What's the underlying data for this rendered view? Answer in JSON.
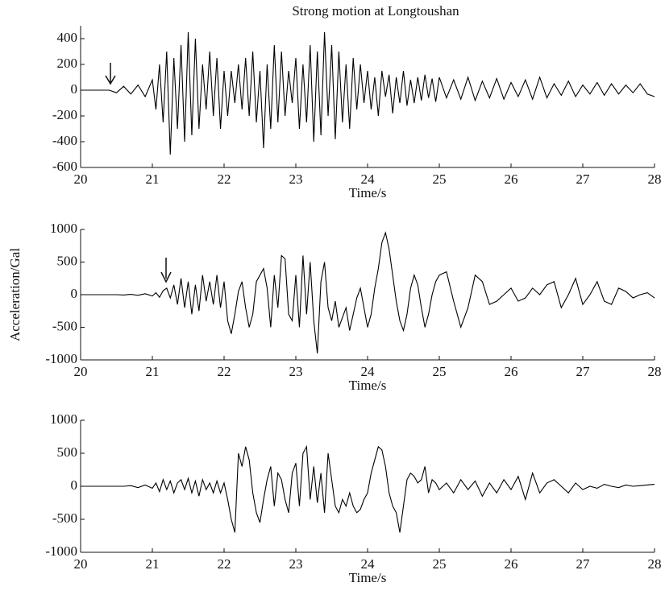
{
  "chart_data": [
    {
      "type": "line",
      "title": "Strong motion at Longtoushan",
      "xlabel": "Time/s",
      "x": [
        20,
        20.1,
        20.2,
        20.3,
        20.4,
        20.5,
        20.6,
        20.7,
        20.8,
        20.9,
        21,
        21.05,
        21.1,
        21.15,
        21.2,
        21.25,
        21.3,
        21.35,
        21.4,
        21.45,
        21.5,
        21.55,
        21.6,
        21.65,
        21.7,
        21.75,
        21.8,
        21.85,
        21.9,
        21.95,
        22,
        22.05,
        22.1,
        22.15,
        22.2,
        22.25,
        22.3,
        22.35,
        22.4,
        22.45,
        22.5,
        22.55,
        22.6,
        22.65,
        22.7,
        22.75,
        22.8,
        22.85,
        22.9,
        22.95,
        23,
        23.05,
        23.1,
        23.15,
        23.2,
        23.25,
        23.3,
        23.35,
        23.4,
        23.45,
        23.5,
        23.55,
        23.6,
        23.65,
        23.7,
        23.75,
        23.8,
        23.85,
        23.9,
        23.95,
        24,
        24.05,
        24.1,
        24.15,
        24.2,
        24.25,
        24.3,
        24.35,
        24.4,
        24.45,
        24.5,
        24.55,
        24.6,
        24.65,
        24.7,
        24.75,
        24.8,
        24.85,
        24.9,
        24.95,
        25,
        25.1,
        25.2,
        25.3,
        25.4,
        25.5,
        25.6,
        25.7,
        25.8,
        25.9,
        26,
        26.1,
        26.2,
        26.3,
        26.4,
        26.5,
        26.6,
        26.7,
        26.8,
        26.9,
        27,
        27.1,
        27.2,
        27.3,
        27.4,
        27.5,
        27.6,
        27.7,
        27.8,
        27.9,
        28
      ],
      "series": [
        {
          "color": "#000000",
          "values": [
            0,
            0,
            0,
            0,
            0,
            -20,
            30,
            -30,
            40,
            -50,
            80,
            -150,
            200,
            -250,
            300,
            -500,
            250,
            -300,
            350,
            -400,
            450,
            -350,
            400,
            -300,
            200,
            -150,
            300,
            -200,
            250,
            -300,
            150,
            -200,
            150,
            -100,
            200,
            -150,
            250,
            -200,
            300,
            -250,
            150,
            -450,
            200,
            -300,
            350,
            -250,
            300,
            -200,
            150,
            -100,
            250,
            -300,
            200,
            -250,
            350,
            -400,
            300,
            -350,
            450,
            -200,
            350,
            -380,
            300,
            -250,
            200,
            -300,
            250,
            -150,
            200,
            -100,
            150,
            -150,
            100,
            -200,
            150,
            -50,
            120,
            -180,
            100,
            -100,
            150,
            -120,
            80,
            -100,
            100,
            -80,
            120,
            -60,
            90,
            -90,
            100,
            -60,
            80,
            -70,
            100,
            -80,
            70,
            -60,
            90,
            -70,
            60,
            -50,
            80,
            -70,
            100,
            -60,
            50,
            -40,
            70,
            -50,
            40,
            -30,
            60,
            -40,
            50,
            -30,
            40,
            -20,
            50,
            -30,
            -50
          ]
        }
      ],
      "xlim": [
        20,
        28
      ],
      "ylim": [
        -600,
        500
      ],
      "xticks": [
        20,
        21,
        22,
        23,
        24,
        25,
        26,
        27,
        28
      ],
      "yticks": [
        -600,
        -400,
        -200,
        0,
        200,
        400
      ]
    },
    {
      "type": "line",
      "xlabel": "Time/s",
      "ylabel": "Acceleration/Gal",
      "x": [
        20,
        20.1,
        20.2,
        20.3,
        20.4,
        20.5,
        20.6,
        20.7,
        20.8,
        20.9,
        21,
        21.05,
        21.1,
        21.15,
        21.2,
        21.25,
        21.3,
        21.35,
        21.4,
        21.45,
        21.5,
        21.55,
        21.6,
        21.65,
        21.7,
        21.75,
        21.8,
        21.85,
        21.9,
        21.95,
        22,
        22.05,
        22.1,
        22.15,
        22.2,
        22.25,
        22.3,
        22.35,
        22.4,
        22.45,
        22.5,
        22.55,
        22.6,
        22.65,
        22.7,
        22.75,
        22.8,
        22.85,
        22.9,
        22.95,
        23,
        23.05,
        23.1,
        23.15,
        23.2,
        23.25,
        23.3,
        23.35,
        23.4,
        23.45,
        23.5,
        23.55,
        23.6,
        23.65,
        23.7,
        23.75,
        23.8,
        23.85,
        23.9,
        23.95,
        24,
        24.05,
        24.1,
        24.15,
        24.2,
        24.25,
        24.3,
        24.35,
        24.4,
        24.45,
        24.5,
        24.55,
        24.6,
        24.65,
        24.7,
        24.75,
        24.8,
        24.85,
        24.9,
        24.95,
        25,
        25.1,
        25.2,
        25.3,
        25.4,
        25.5,
        25.6,
        25.7,
        25.8,
        25.9,
        26,
        26.1,
        26.2,
        26.3,
        26.4,
        26.5,
        26.6,
        26.7,
        26.8,
        26.9,
        27,
        27.1,
        27.2,
        27.3,
        27.4,
        27.5,
        27.6,
        27.7,
        27.8,
        27.9,
        28
      ],
      "series": [
        {
          "color": "#000000",
          "values": [
            0,
            0,
            0,
            0,
            0,
            0,
            -5,
            5,
            -10,
            15,
            -20,
            30,
            -40,
            60,
            100,
            -50,
            150,
            -150,
            250,
            -200,
            200,
            -300,
            150,
            -250,
            300,
            -100,
            200,
            -150,
            300,
            -200,
            200,
            -400,
            -600,
            -300,
            50,
            200,
            -200,
            -500,
            -300,
            200,
            300,
            400,
            100,
            -500,
            300,
            -200,
            600,
            550,
            -300,
            -400,
            300,
            -500,
            600,
            -300,
            500,
            -400,
            -900,
            200,
            500,
            -200,
            -400,
            -100,
            -500,
            -350,
            -200,
            -550,
            -300,
            -50,
            100,
            -200,
            -500,
            -300,
            100,
            400,
            800,
            950,
            700,
            300,
            -100,
            -400,
            -550,
            -300,
            100,
            300,
            150,
            -200,
            -500,
            -300,
            0,
            200,
            300,
            350,
            -100,
            -500,
            -200,
            300,
            200,
            -150,
            -100,
            0,
            100,
            -100,
            -50,
            100,
            0,
            150,
            200,
            -200,
            0,
            250,
            -150,
            0,
            200,
            -100,
            -150,
            100,
            50,
            -50,
            0,
            30,
            -50
          ]
        }
      ],
      "xlim": [
        20,
        28
      ],
      "ylim": [
        -1000,
        1000
      ],
      "xticks": [
        20,
        21,
        22,
        23,
        24,
        25,
        26,
        27,
        28
      ],
      "yticks": [
        -1000,
        -500,
        0,
        500,
        1000
      ]
    },
    {
      "type": "line",
      "xlabel": "Time/s",
      "x": [
        20,
        20.1,
        20.2,
        20.3,
        20.4,
        20.5,
        20.6,
        20.7,
        20.8,
        20.9,
        21,
        21.05,
        21.1,
        21.15,
        21.2,
        21.25,
        21.3,
        21.35,
        21.4,
        21.45,
        21.5,
        21.55,
        21.6,
        21.65,
        21.7,
        21.75,
        21.8,
        21.85,
        21.9,
        21.95,
        22,
        22.05,
        22.1,
        22.15,
        22.2,
        22.25,
        22.3,
        22.35,
        22.4,
        22.45,
        22.5,
        22.55,
        22.6,
        22.65,
        22.7,
        22.75,
        22.8,
        22.85,
        22.9,
        22.95,
        23,
        23.05,
        23.1,
        23.15,
        23.2,
        23.25,
        23.3,
        23.35,
        23.4,
        23.45,
        23.5,
        23.55,
        23.6,
        23.65,
        23.7,
        23.75,
        23.8,
        23.85,
        23.9,
        23.95,
        24,
        24.05,
        24.1,
        24.15,
        24.2,
        24.25,
        24.3,
        24.35,
        24.4,
        24.45,
        24.5,
        24.55,
        24.6,
        24.65,
        24.7,
        24.75,
        24.8,
        24.85,
        24.9,
        24.95,
        25,
        25.1,
        25.2,
        25.3,
        25.4,
        25.5,
        25.6,
        25.7,
        25.8,
        25.9,
        26,
        26.1,
        26.2,
        26.3,
        26.4,
        26.5,
        26.6,
        26.7,
        26.8,
        26.9,
        27,
        27.1,
        27.2,
        27.3,
        27.4,
        27.5,
        27.6,
        27.7,
        27.8,
        27.9,
        28
      ],
      "series": [
        {
          "color": "#000000",
          "values": [
            0,
            0,
            0,
            0,
            0,
            0,
            0,
            10,
            -20,
            20,
            -30,
            50,
            -80,
            100,
            -50,
            80,
            -100,
            50,
            100,
            -50,
            120,
            -100,
            80,
            -150,
            100,
            -50,
            50,
            -100,
            80,
            -100,
            50,
            -200,
            -500,
            -700,
            500,
            300,
            600,
            400,
            -100,
            -400,
            -550,
            -200,
            100,
            300,
            -300,
            200,
            100,
            -200,
            -400,
            200,
            350,
            -300,
            500,
            600,
            -200,
            300,
            -250,
            200,
            -400,
            500,
            100,
            -300,
            -400,
            -200,
            -300,
            -100,
            -300,
            -400,
            -350,
            -200,
            -100,
            200,
            400,
            600,
            550,
            300,
            -100,
            -300,
            -400,
            -700,
            -300,
            100,
            200,
            150,
            50,
            100,
            300,
            -100,
            100,
            50,
            -50,
            50,
            -100,
            100,
            -50,
            80,
            -150,
            50,
            -100,
            100,
            -50,
            150,
            -200,
            200,
            -100,
            50,
            100,
            0,
            -100,
            50,
            -50,
            0,
            -30,
            30,
            0,
            -20,
            20,
            0,
            10,
            20,
            30
          ]
        }
      ],
      "xlim": [
        20,
        28
      ],
      "ylim": [
        -1000,
        1000
      ],
      "xticks": [
        20,
        21,
        22,
        23,
        24,
        25,
        26,
        27,
        28
      ],
      "yticks": [
        -1000,
        -500,
        0,
        500,
        1000
      ]
    }
  ]
}
